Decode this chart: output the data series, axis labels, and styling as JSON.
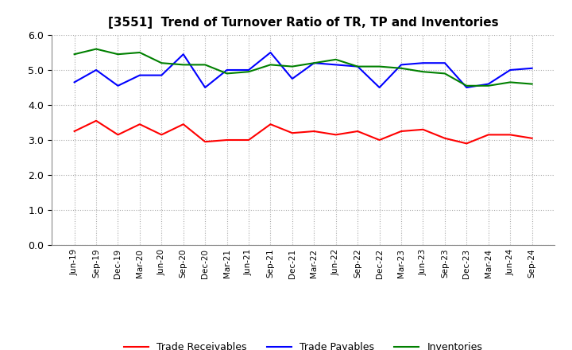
{
  "title": "[3551]  Trend of Turnover Ratio of TR, TP and Inventories",
  "x_labels": [
    "Jun-19",
    "Sep-19",
    "Dec-19",
    "Mar-20",
    "Jun-20",
    "Sep-20",
    "Dec-20",
    "Mar-21",
    "Jun-21",
    "Sep-21",
    "Dec-21",
    "Mar-22",
    "Jun-22",
    "Sep-22",
    "Dec-22",
    "Mar-23",
    "Jun-23",
    "Sep-23",
    "Dec-23",
    "Mar-24",
    "Jun-24",
    "Sep-24"
  ],
  "trade_receivables": [
    3.25,
    3.55,
    3.15,
    3.45,
    3.15,
    3.45,
    2.95,
    3.0,
    3.0,
    3.45,
    3.2,
    3.25,
    3.15,
    3.25,
    3.0,
    3.25,
    3.3,
    3.05,
    2.9,
    3.15,
    3.15,
    3.05
  ],
  "trade_payables": [
    4.65,
    5.0,
    4.55,
    4.85,
    4.85,
    5.45,
    4.5,
    5.0,
    5.0,
    5.5,
    4.75,
    5.2,
    5.15,
    5.1,
    4.5,
    5.15,
    5.2,
    5.2,
    4.5,
    4.6,
    5.0,
    5.05
  ],
  "inventories": [
    5.45,
    5.6,
    5.45,
    5.5,
    5.2,
    5.15,
    5.15,
    4.9,
    4.95,
    5.15,
    5.1,
    5.2,
    5.3,
    5.1,
    5.1,
    5.05,
    4.95,
    4.9,
    4.55,
    4.55,
    4.65,
    4.6
  ],
  "tr_color": "#ff0000",
  "tp_color": "#0000ff",
  "inv_color": "#008000",
  "ylim": [
    0.0,
    6.0
  ],
  "yticks": [
    0.0,
    1.0,
    2.0,
    3.0,
    4.0,
    5.0,
    6.0
  ],
  "legend_labels": [
    "Trade Receivables",
    "Trade Payables",
    "Inventories"
  ],
  "background_color": "#ffffff",
  "grid_color": "#aaaaaa"
}
